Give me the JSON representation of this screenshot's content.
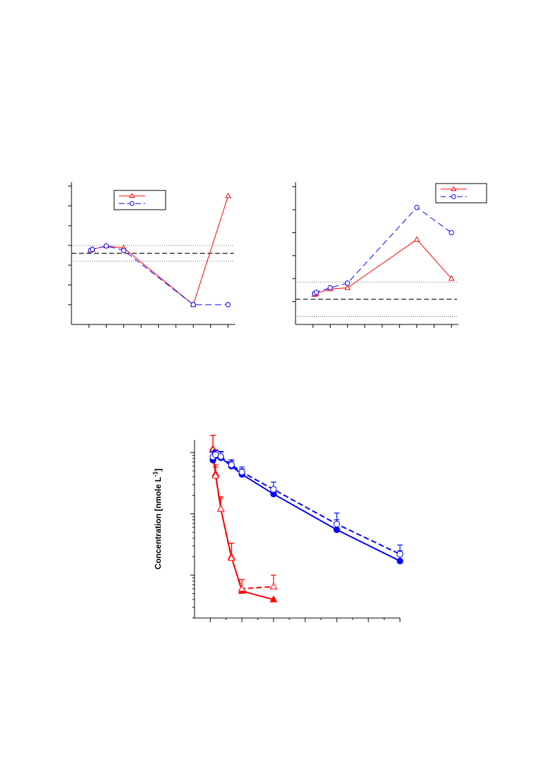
{
  "colors": {
    "red": "#ff0000",
    "blue": "#0000ff",
    "refline": "#333333",
    "axis": "#000000"
  },
  "chart_data": [
    {
      "type": "line",
      "panel": "top-left",
      "xlabel": "",
      "ylabel": "",
      "xlim": [
        -1,
        8.4
      ],
      "ylim": [
        0,
        7.2
      ],
      "ref_lines": {
        "mean": 3.6,
        "band": [
          3.2,
          4.0
        ]
      },
      "legend": {
        "placement": "top-center",
        "entries": [
          "",
          ""
        ]
      },
      "series": [
        {
          "marker": "open-triangle",
          "style": "solid",
          "color": "red",
          "x": [
            0.1,
            0.2,
            1.0,
            2.0,
            6.0,
            8.0
          ],
          "y": [
            3.75,
            3.8,
            3.97,
            3.87,
            1.0,
            6.5
          ]
        },
        {
          "marker": "open-circle",
          "style": "dashed",
          "color": "blue",
          "x": [
            0.1,
            0.2,
            1.0,
            2.0,
            6.0,
            8.0
          ],
          "y": [
            3.75,
            3.8,
            3.97,
            3.75,
            1.0,
            1.0
          ]
        }
      ]
    },
    {
      "type": "line",
      "panel": "top-right",
      "xlabel": "",
      "ylabel": "",
      "xlim": [
        -1,
        8.4
      ],
      "ylim": [
        0,
        6.2
      ],
      "ref_lines": {
        "mean": 1.1,
        "band": [
          0.35,
          1.85
        ]
      },
      "legend": {
        "placement": "top-right",
        "entries": [
          "",
          ""
        ]
      },
      "series": [
        {
          "marker": "open-triangle",
          "style": "solid",
          "color": "red",
          "x": [
            0.1,
            0.2,
            1.0,
            2.0,
            6.0,
            8.0
          ],
          "y": [
            1.3,
            1.35,
            1.55,
            1.6,
            3.7,
            2.0
          ]
        },
        {
          "marker": "open-circle",
          "style": "dashed",
          "color": "blue",
          "x": [
            0.1,
            0.2,
            1.0,
            2.0,
            6.0,
            8.0
          ],
          "y": [
            1.35,
            1.4,
            1.6,
            1.8,
            5.1,
            4.0
          ]
        }
      ]
    },
    {
      "type": "line",
      "panel": "bottom",
      "xlabel": "",
      "ylabel": "Concentration [nmole L-1]",
      "ylabel_main": "Concentration [nmole L",
      "ylabel_sup": "-1",
      "ylabel_end": "]",
      "yscale": "log",
      "xlim": [
        -0.5,
        6.0
      ],
      "ylim": [
        0.02,
        16
      ],
      "series": [
        {
          "marker": "filled-triangle",
          "style": "solid",
          "color": "red",
          "x": [
            0.083,
            0.167,
            0.333,
            0.667,
            1.0,
            2.0
          ],
          "y": [
            11.5,
            4.5,
            1.2,
            0.2,
            0.055,
            0.04
          ],
          "err_up": [
            7.5,
            1.8,
            0.7,
            0.13,
            0.03,
            0.0
          ]
        },
        {
          "marker": "open-triangle",
          "style": "dashed",
          "color": "red",
          "x": [
            0.083,
            0.167,
            0.333,
            0.667,
            1.0,
            2.0
          ],
          "y": [
            11.0,
            4.2,
            1.2,
            0.19,
            0.06,
            0.065
          ],
          "err_up": [
            8.0,
            1.6,
            0.6,
            0.14,
            0.025,
            0.035
          ]
        },
        {
          "marker": "filled-circle",
          "style": "solid",
          "color": "blue",
          "x": [
            0.083,
            0.167,
            0.333,
            0.667,
            1.0,
            2.0,
            4.0,
            6.0
          ],
          "y": [
            7.5,
            8.8,
            8.2,
            6.0,
            4.4,
            2.1,
            0.55,
            0.17
          ],
          "err_up": [
            2.5,
            2.0,
            2.0,
            1.2,
            1.0,
            0.6,
            0.25,
            0.08
          ]
        },
        {
          "marker": "open-circle",
          "style": "dashed",
          "color": "blue",
          "x": [
            0.083,
            0.167,
            0.333,
            0.667,
            1.0,
            2.0,
            4.0,
            6.0
          ],
          "y": [
            8.5,
            9.2,
            8.6,
            6.3,
            4.8,
            2.5,
            0.68,
            0.22
          ],
          "err_up": [
            2.0,
            1.8,
            1.8,
            1.3,
            1.0,
            0.8,
            0.35,
            0.09
          ]
        }
      ]
    }
  ]
}
